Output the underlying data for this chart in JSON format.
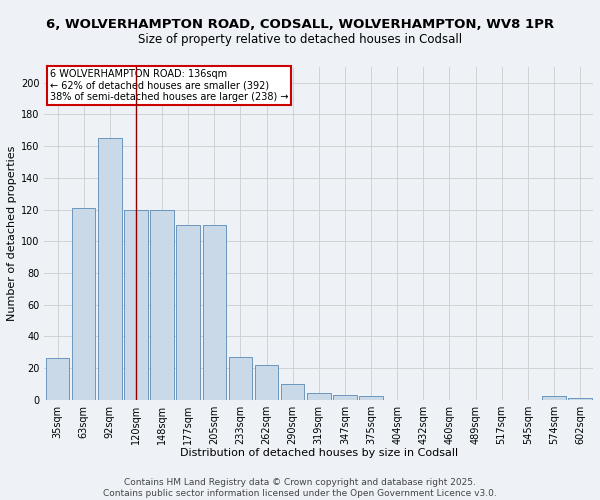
{
  "title1": "6, WOLVERHAMPTON ROAD, CODSALL, WOLVERHAMPTON, WV8 1PR",
  "title2": "Size of property relative to detached houses in Codsall",
  "xlabel": "Distribution of detached houses by size in Codsall",
  "ylabel": "Number of detached properties",
  "categories": [
    "35sqm",
    "63sqm",
    "92sqm",
    "120sqm",
    "148sqm",
    "177sqm",
    "205sqm",
    "233sqm",
    "262sqm",
    "290sqm",
    "319sqm",
    "347sqm",
    "375sqm",
    "404sqm",
    "432sqm",
    "460sqm",
    "489sqm",
    "517sqm",
    "545sqm",
    "574sqm",
    "602sqm"
  ],
  "values": [
    26,
    121,
    165,
    120,
    120,
    110,
    110,
    27,
    22,
    10,
    4,
    3,
    2,
    0,
    0,
    0,
    0,
    0,
    0,
    2,
    1
  ],
  "bar_color": "#c9d9e8",
  "bar_edge_color": "#5a8ab5",
  "highlight_index": 3,
  "highlight_line_color": "#8b0000",
  "annotation_box_text": "6 WOLVERHAMPTON ROAD: 136sqm\n← 62% of detached houses are smaller (392)\n38% of semi-detached houses are larger (238) →",
  "annotation_box_color": "#ffffff",
  "annotation_box_edge_color": "#cc0000",
  "ylim": [
    0,
    210
  ],
  "yticks": [
    0,
    20,
    40,
    60,
    80,
    100,
    120,
    140,
    160,
    180,
    200
  ],
  "footer": "Contains HM Land Registry data © Crown copyright and database right 2025.\nContains public sector information licensed under the Open Government Licence v3.0.",
  "background_color": "#eef2f7",
  "plot_bg_color": "#eef2f7",
  "grid_color": "#cccccc",
  "title_fontsize": 9.5,
  "subtitle_fontsize": 8.5,
  "label_fontsize": 8,
  "tick_fontsize": 7,
  "footer_fontsize": 6.5
}
